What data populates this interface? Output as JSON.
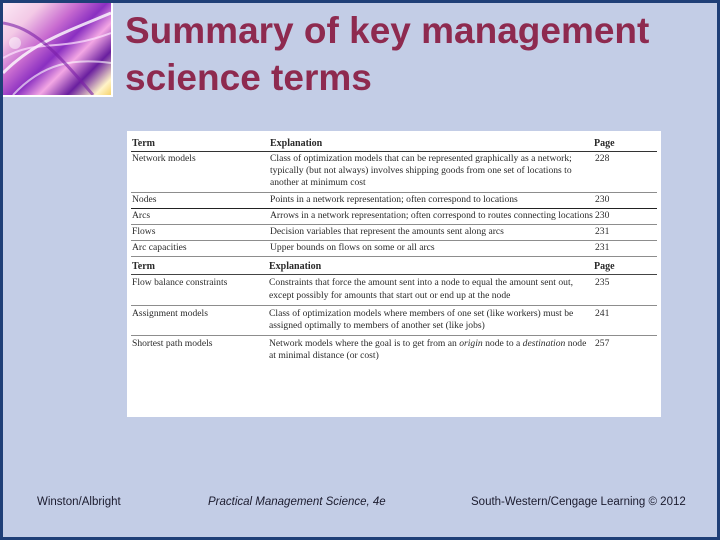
{
  "title": {
    "line1": "Summary of key management",
    "line2": "science terms"
  },
  "table1": {
    "headers": {
      "term": "Term",
      "explanation": "Explanation",
      "page": "Page"
    },
    "rows": [
      {
        "term": "Network models",
        "explanation": "Class of optimization models that can be represented graphically as a network; typically (but not always) involves shipping goods from one set of locations to another at minimum cost",
        "page": "228"
      },
      {
        "term": "Nodes",
        "explanation": "Points in a network representation; often correspond to locations",
        "page": "230"
      },
      {
        "term": "Arcs",
        "explanation": "Arrows in a network representation; often correspond to routes connecting locations",
        "page": "230"
      },
      {
        "term": "Flows",
        "explanation": "Decision variables that represent the amounts sent along arcs",
        "page": "231"
      },
      {
        "term": "Arc capacities",
        "explanation": "Upper bounds on flows on some or all arcs",
        "page": "231"
      }
    ]
  },
  "table2": {
    "headers": {
      "term": "Term",
      "explanation": "Explanation",
      "page": "Page"
    },
    "rows": [
      {
        "term": "Flow balance constraints",
        "explanation": "Constraints that force the amount sent into a node to equal the amount sent out, except possibly for amounts that start out or end up at the node",
        "page": "235"
      },
      {
        "term": "Assignment models",
        "explanation": "Class of optimization models where members of one set (like workers) must be assigned optimally to members of another set (like jobs)",
        "page": "241"
      },
      {
        "term": "Shortest path models",
        "explanation_pre": "Network models where the goal is to get from an ",
        "explanation_em1": "origin",
        "explanation_mid": " node to a ",
        "explanation_em2": "destination",
        "explanation_post": " node at minimal distance (or cost)",
        "page": "257"
      }
    ]
  },
  "footer": {
    "left": "Winston/Albright",
    "middle": "Practical Management Science, 4e",
    "right": "South-Western/Cengage Learning © 2012"
  }
}
